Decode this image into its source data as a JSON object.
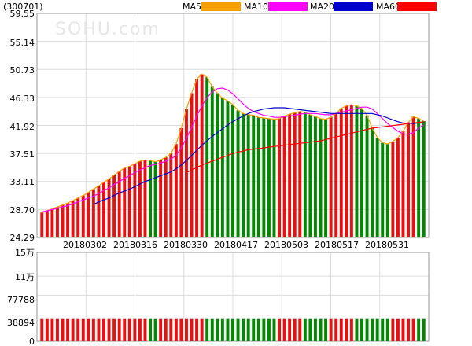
{
  "header": {
    "code": "(300701)",
    "watermark": "SOHU.com"
  },
  "legend": [
    {
      "label": "MA5",
      "color": "#f5a000"
    },
    {
      "label": "MA10",
      "color": "#ff00ff"
    },
    {
      "label": "MA20",
      "color": "#0000cc"
    },
    {
      "label": "MA60",
      "color": "#ff0000"
    }
  ],
  "colors": {
    "up": "#e81010",
    "down": "#008800"
  },
  "chart_data": {
    "type": "bar",
    "x_labels": [
      "20180302",
      "20180316",
      "20180330",
      "20180417",
      "20180503",
      "20180517",
      "20180531"
    ],
    "y_ticks_price": [
      "59.55",
      "55.14",
      "50.73",
      "46.33",
      "41.92",
      "37.51",
      "33.11",
      "28.70",
      "24.29"
    ],
    "y_ticks_volume": [
      "15万",
      "11万",
      "77788",
      "38894",
      "0"
    ],
    "ylim_price": [
      24.29,
      59.55
    ],
    "ylim_volume": [
      0,
      150000
    ],
    "series": [
      {
        "name": "price"
      },
      {
        "name": "MA5",
        "values": [
          28.2,
          28.5,
          28.8,
          29.1,
          29.4,
          29.7,
          30.1,
          30.5,
          30.9,
          31.4,
          31.9,
          32.4,
          33,
          33.5,
          34.1,
          34.7,
          35.2,
          35.5,
          35.9,
          36.3,
          36.5,
          36.4,
          36.2,
          36.5,
          36.9,
          37.5,
          39,
          41.5,
          44.5,
          47,
          49.2,
          50,
          49.5,
          48,
          47,
          46.2,
          45.8,
          45.2,
          44.3,
          43.8,
          43.6,
          43.5,
          43.2,
          43.1,
          43,
          42.9,
          43,
          43.4,
          43.7,
          43.9,
          44.1,
          44,
          43.6,
          43.3,
          43,
          42.9,
          43.2,
          43.8,
          44.6,
          45,
          45.2,
          45,
          44.6,
          43.5,
          41.5,
          40,
          39.2,
          39,
          39.4,
          40,
          41,
          42.4,
          43.3,
          43,
          42.6
        ]
      },
      {
        "name": "MA10",
        "values": [
          28.3,
          28.5,
          28.7,
          28.9,
          29.1,
          29.3,
          29.6,
          29.9,
          30.2,
          30.5,
          30.8,
          31.2,
          31.7,
          32.1,
          32.6,
          33.1,
          33.6,
          34,
          34.5,
          34.9,
          35.3,
          35.6,
          35.8,
          36,
          36.3,
          36.6,
          37.2,
          38.4,
          39.9,
          41.6,
          43.4,
          45,
          46.3,
          47.2,
          47.7,
          47.8,
          47.5,
          46.9,
          46.1,
          45.3,
          44.6,
          44.1,
          43.8,
          43.5,
          43.4,
          43.2,
          43.2,
          43.3,
          43.4,
          43.5,
          43.7,
          43.8,
          43.8,
          43.8,
          43.7,
          43.6,
          43.6,
          43.8,
          44,
          44.2,
          44.4,
          44.6,
          44.8,
          44.8,
          44.5,
          43.8,
          43,
          42.2,
          41.6,
          41,
          40.6,
          40.5,
          40.8,
          41.5,
          42
        ]
      },
      {
        "name": "MA20",
        "values": [
          null,
          null,
          null,
          null,
          null,
          null,
          null,
          null,
          null,
          null,
          29.5,
          29.9,
          30.2,
          30.5,
          30.9,
          31.3,
          31.6,
          31.9,
          32.3,
          32.7,
          33.1,
          33.4,
          33.7,
          34,
          34.3,
          34.6,
          35.1,
          35.7,
          36.4,
          37.2,
          38,
          38.8,
          39.5,
          40.2,
          40.8,
          41.4,
          42,
          42.5,
          43,
          43.4,
          43.8,
          44.1,
          44.3,
          44.5,
          44.6,
          44.7,
          44.7,
          44.7,
          44.6,
          44.5,
          44.4,
          44.3,
          44.2,
          44.1,
          44,
          43.9,
          43.8,
          43.8,
          43.8,
          43.8,
          43.8,
          43.8,
          43.8,
          43.8,
          43.8,
          43.6,
          43.4,
          43.1,
          42.8,
          42.5,
          42.3,
          42.2,
          42.2,
          42.3,
          42.3
        ]
      },
      {
        "name": "MA60",
        "values": [
          null,
          null,
          null,
          null,
          null,
          null,
          null,
          null,
          null,
          null,
          null,
          null,
          null,
          null,
          null,
          null,
          null,
          null,
          null,
          null,
          null,
          null,
          null,
          null,
          null,
          null,
          null,
          null,
          34.5,
          34.9,
          35.3,
          35.7,
          36,
          36.3,
          36.6,
          36.9,
          37.2,
          37.5,
          37.7,
          37.9,
          38.1,
          38.2,
          38.3,
          38.4,
          38.5,
          38.6,
          38.7,
          38.8,
          38.9,
          39,
          39.1,
          39.2,
          39.3,
          39.4,
          39.5,
          39.7,
          39.9,
          40.1,
          40.3,
          40.5,
          40.7,
          40.9,
          41.1,
          41.3,
          41.5,
          41.6,
          41.7,
          41.8,
          41.9,
          42,
          42.1,
          42.2,
          42.3,
          42.4,
          42.5
        ]
      }
    ]
  }
}
